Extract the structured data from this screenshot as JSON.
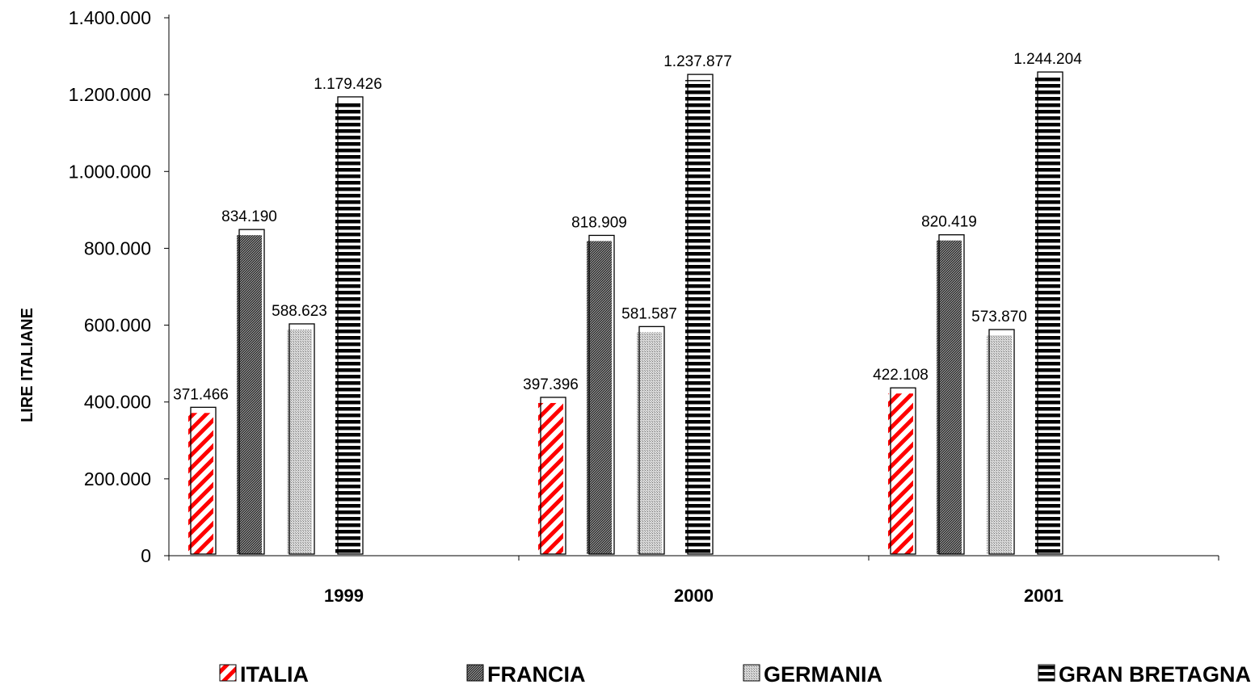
{
  "chart_data": {
    "type": "bar",
    "ylabel": "LIRE  ITALIANE",
    "xlabel": "",
    "categories": [
      "1999",
      "2000",
      "2001"
    ],
    "ylim": [
      0,
      1400000
    ],
    "yticks": [
      0,
      200000,
      400000,
      600000,
      800000,
      1000000,
      1200000,
      1400000
    ],
    "ytick_labels": [
      "0",
      "200.000",
      "400.000",
      "600.000",
      "800.000",
      "1.000.000",
      "1.200.000",
      "1.400.000"
    ],
    "legend_position": "bottom",
    "grid": false,
    "series": [
      {
        "name": "ITALIA",
        "pattern": "red-diagonal-stripes",
        "color": "#ff0000",
        "values": [
          371466,
          397396,
          422108
        ],
        "labels": [
          "371.466",
          "397.396",
          "422.108"
        ]
      },
      {
        "name": "FRANCIA",
        "pattern": "dark-checker",
        "color": "#404040",
        "values": [
          834190,
          818909,
          820419
        ],
        "labels": [
          "834.190",
          "818.909",
          "820.419"
        ]
      },
      {
        "name": "GERMANIA",
        "pattern": "light-dots",
        "color": "#b0b0b0",
        "values": [
          588623,
          581587,
          573870
        ],
        "labels": [
          "588.623",
          "581.587",
          "573.870"
        ]
      },
      {
        "name": "GRAN BRETAGNA",
        "pattern": "horizontal-stripes",
        "color": "#000000",
        "values": [
          1179426,
          1237877,
          1244204
        ],
        "labels": [
          "1.179.426",
          "1.237.877",
          "1.244.204"
        ]
      }
    ]
  }
}
